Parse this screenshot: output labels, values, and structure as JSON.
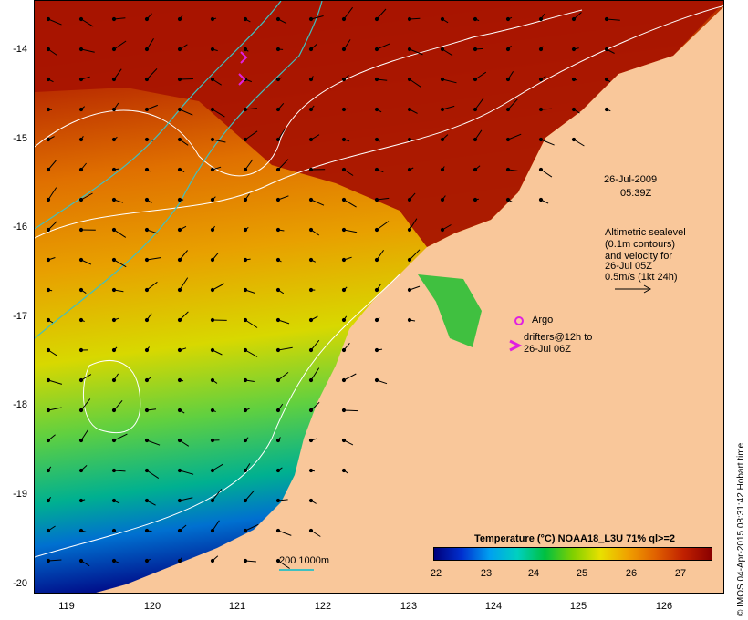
{
  "map": {
    "date_line": "26-Jul-2009",
    "time_line": "05:39Z",
    "y_ticks": [
      "-14",
      "-15",
      "-16",
      "-17",
      "-18",
      "-19",
      "-20"
    ],
    "x_ticks": [
      "119",
      "120",
      "121",
      "122",
      "123",
      "124",
      "125",
      "126"
    ],
    "altimetry_note": [
      "Altimetric sealevel",
      "(0.1m contours)",
      "and velocity for",
      "26-Jul 05Z",
      "0.5m/s (1kt 24h)"
    ],
    "argo_label": "Argo",
    "drifter_note": [
      "drifters@12h to",
      "26-Jul 06Z"
    ],
    "depth_legend": "200  1000m",
    "colorbar_title": "Temperature (°C) NOAA18_L3U 71% ql>=2",
    "colorbar_ticks": [
      "22",
      "23",
      "24",
      "25",
      "26",
      "27"
    ],
    "credit": "© IMOS 04-Apr-2015 08:31:42 Hobart time",
    "colors": {
      "land": "#f9c79a",
      "hot": "#b01800",
      "argo": "#e020e0",
      "contour": "#ffffff",
      "isobath": "#40c0c0"
    }
  }
}
